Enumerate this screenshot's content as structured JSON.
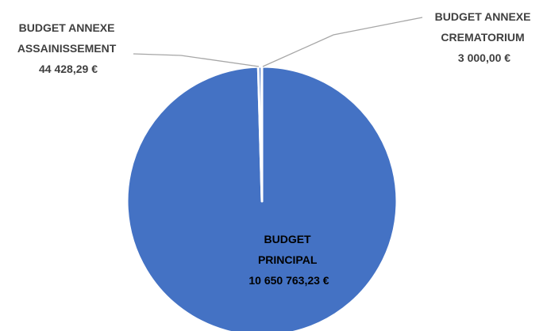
{
  "chart_data": {
    "type": "pie",
    "slices": [
      {
        "line1": "BUDGET",
        "line2": "PRINCIPAL",
        "value_label": "10 650 763,23 €",
        "value": 10650763.23,
        "color": "#4472C4"
      },
      {
        "line1": "BUDGET ANNEXE",
        "line2": "ASSAINISSEMENT",
        "value_label": "44 428,29 €",
        "value": 44428.29,
        "color": "#4472C4"
      },
      {
        "line1": "BUDGET ANNEXE",
        "line2": "CREMATORIUM",
        "value_label": "3 000,00 €",
        "value": 3000.0,
        "color": "#4472C4"
      }
    ],
    "legend": "none",
    "data_labels": "category and value"
  }
}
